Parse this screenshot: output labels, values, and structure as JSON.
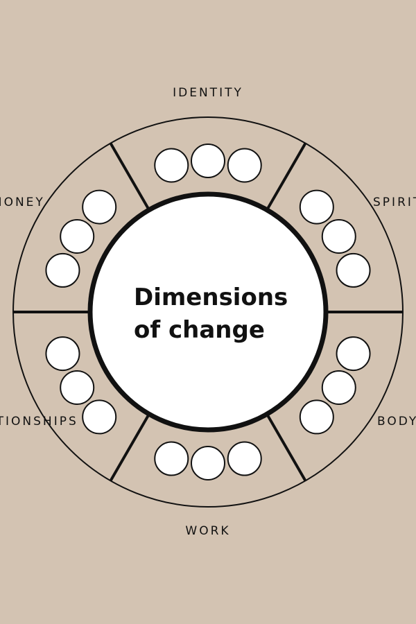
{
  "diagram": {
    "title_line1": "Dimensions",
    "title_line2": "of change",
    "segments": [
      {
        "label": "IDENTITY",
        "dots": 3
      },
      {
        "label": "SPIRIT",
        "dots": 3
      },
      {
        "label": "BODY",
        "dots": 3
      },
      {
        "label": "WORK",
        "dots": 3
      },
      {
        "label": "RELATIONSHIPS",
        "dots": 3
      },
      {
        "label": "MONEY",
        "dots": 3
      }
    ],
    "colors": {
      "background": "#d3c3b2",
      "ring_fill": "#d3c3b2",
      "stroke": "#111111",
      "center_fill": "#ffffff",
      "dot_fill": "#ffffff"
    }
  }
}
